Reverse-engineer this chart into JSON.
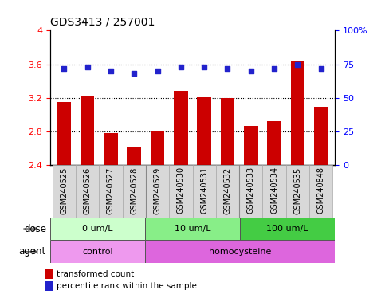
{
  "title": "GDS3413 / 257001",
  "samples": [
    "GSM240525",
    "GSM240526",
    "GSM240527",
    "GSM240528",
    "GSM240529",
    "GSM240530",
    "GSM240531",
    "GSM240532",
    "GSM240533",
    "GSM240534",
    "GSM240535",
    "GSM240848"
  ],
  "transformed_count": [
    3.15,
    3.22,
    2.78,
    2.62,
    2.8,
    3.28,
    3.21,
    3.2,
    2.87,
    2.92,
    3.64,
    3.09
  ],
  "percentile_rank": [
    72,
    73,
    70,
    68,
    70,
    73,
    73,
    72,
    70,
    72,
    75,
    72
  ],
  "ylim_left": [
    2.4,
    4.0
  ],
  "ylim_right": [
    0,
    100
  ],
  "yticks_left": [
    2.4,
    2.8,
    3.2,
    3.6,
    4.0
  ],
  "yticks_right": [
    0,
    25,
    50,
    75,
    100
  ],
  "ytick_labels_left": [
    "2.4",
    "2.8",
    "3.2",
    "3.6",
    "4"
  ],
  "ytick_labels_right": [
    "0",
    "25",
    "50",
    "75",
    "100%"
  ],
  "hlines": [
    2.8,
    3.2,
    3.6
  ],
  "bar_color": "#cc0000",
  "dot_color": "#2222cc",
  "dose_groups": [
    {
      "label": "0 um/L",
      "start": 0,
      "end": 4,
      "color": "#ccffcc"
    },
    {
      "label": "10 um/L",
      "start": 4,
      "end": 8,
      "color": "#88ee88"
    },
    {
      "label": "100 um/L",
      "start": 8,
      "end": 12,
      "color": "#44cc44"
    }
  ],
  "agent_groups": [
    {
      "label": "control",
      "start": 0,
      "end": 4,
      "color": "#ee99ee"
    },
    {
      "label": "homocysteine",
      "start": 4,
      "end": 12,
      "color": "#dd66dd"
    }
  ],
  "dose_label": "dose",
  "agent_label": "agent",
  "legend_bar_label": "transformed count",
  "legend_dot_label": "percentile rank within the sample",
  "sample_bg": "#d8d8d8",
  "plot_bg": "#ffffff",
  "title_fontsize": 10,
  "tick_fontsize": 8,
  "sample_fontsize": 7,
  "group_fontsize": 8,
  "legend_fontsize": 7.5,
  "label_fontsize": 8.5
}
